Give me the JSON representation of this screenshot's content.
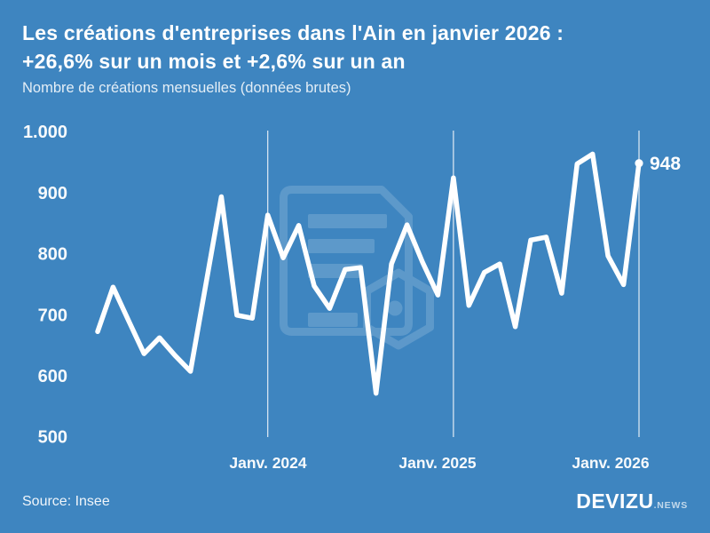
{
  "header": {
    "title_line1": "Les créations d'entreprises dans l'Ain en janvier 2026 :",
    "title_line2": "+26,6% sur un mois et +2,6% sur un an",
    "subtitle": "Nombre de créations mensuelles (données brutes)"
  },
  "chart_data": {
    "type": "line",
    "title": "Les créations d'entreprises dans l'Ain en janvier 2026 : +26,6% sur un mois et +2,6% sur un an",
    "subtitle": "Nombre de créations mensuelles (données brutes)",
    "x": [
      "2023-02",
      "2023-03",
      "2023-04",
      "2023-05",
      "2023-06",
      "2023-07",
      "2023-08",
      "2023-09",
      "2023-10",
      "2023-11",
      "2023-12",
      "2024-01",
      "2024-02",
      "2024-03",
      "2024-04",
      "2024-05",
      "2024-06",
      "2024-07",
      "2024-08",
      "2024-09",
      "2024-10",
      "2024-11",
      "2024-12",
      "2025-01",
      "2025-02",
      "2025-03",
      "2025-04",
      "2025-05",
      "2025-06",
      "2025-07",
      "2025-08",
      "2025-09",
      "2025-10",
      "2025-11",
      "2025-12",
      "2026-01"
    ],
    "values": [
      672,
      745,
      690,
      636,
      662,
      633,
      607,
      750,
      893,
      699,
      694,
      863,
      793,
      846,
      747,
      710,
      774,
      777,
      571,
      783,
      847,
      786,
      732,
      924,
      715,
      769,
      783,
      680,
      822,
      827,
      735,
      947,
      963,
      796,
      749,
      948
    ],
    "ylim": [
      500,
      1000
    ],
    "y_ticks": [
      "1.000",
      "900",
      "800",
      "700",
      "600",
      "500"
    ],
    "y_tick_values": [
      1000,
      900,
      800,
      700,
      600,
      500
    ],
    "x_tick_labels": [
      "Janv. 2024",
      "Janv. 2025",
      "Janv. 2026"
    ],
    "x_tick_indices": [
      11,
      23,
      35
    ],
    "grid": "vertical-year-lines-only",
    "legend": "none",
    "line_color": "#ffffff",
    "background_color": "#3e85c0",
    "end_label": "948",
    "end_point": {
      "x": "2026-01",
      "value": 948
    }
  },
  "footer": {
    "source": "Source: Insee",
    "brand": "DEVIZU",
    "brand_suffix": ".NEWS"
  }
}
